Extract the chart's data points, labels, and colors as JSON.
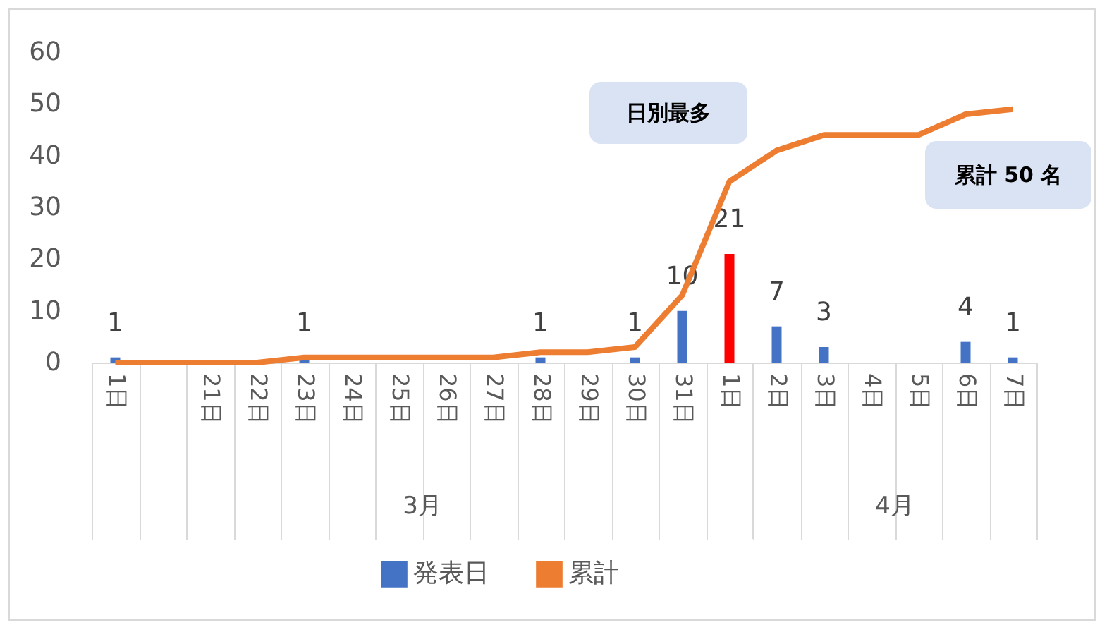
{
  "chart_data": {
    "type": "bar",
    "categories": [
      "1日",
      null,
      "21日",
      "22日",
      "23日",
      "24日",
      "25日",
      "26日",
      "27日",
      "28日",
      "29日",
      "30日",
      "31日",
      "1日",
      "2日",
      "3日",
      "4日",
      "5日",
      "6日",
      "7日"
    ],
    "series": [
      {
        "name": "発表日",
        "color": "#4472c4",
        "colors": [
          "#4472c4",
          "#4472c4",
          "#4472c4",
          "#4472c4",
          "#4472c4",
          "#4472c4",
          "#4472c4",
          "#4472c4",
          "#4472c4",
          "#4472c4",
          "#4472c4",
          "#4472c4",
          "#4472c4",
          "#ff0000",
          "#4472c4",
          "#4472c4",
          "#4472c4",
          "#4472c4",
          "#4472c4",
          "#4472c4"
        ],
        "values": [
          1,
          null,
          0,
          0,
          1,
          0,
          0,
          0,
          0,
          1,
          0,
          1,
          10,
          21,
          7,
          3,
          0,
          0,
          4,
          1
        ],
        "value_labels": [
          "1",
          null,
          null,
          null,
          "1",
          null,
          null,
          null,
          null,
          "1",
          null,
          "1",
          "10",
          "21",
          "7",
          "3",
          null,
          null,
          "4",
          "1"
        ]
      },
      {
        "name": "累計",
        "type": "line",
        "color": "#ed7d31",
        "values": [
          0,
          0,
          0,
          0,
          1,
          1,
          1,
          1,
          1,
          2,
          2,
          3,
          13,
          35,
          41,
          44,
          44,
          44,
          48,
          49
        ]
      }
    ],
    "ylim": [
      0,
      60
    ],
    "yticks": [
      0,
      10,
      20,
      30,
      40,
      50,
      60
    ],
    "grid": false,
    "legend": "bottom",
    "annotations": [
      "日別最多",
      "累計 50 名",
      "3月",
      "4月"
    ]
  }
}
